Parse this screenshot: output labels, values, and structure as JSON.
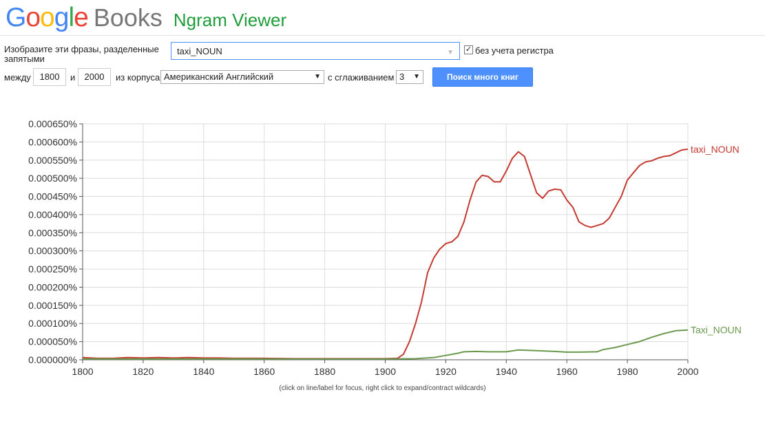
{
  "header": {
    "logo_letters": [
      "G",
      "o",
      "o",
      "g",
      "l",
      "e"
    ],
    "logo_colors": [
      "#4285f4",
      "#ea4335",
      "#fbbc05",
      "#4285f4",
      "#34a853",
      "#ea4335"
    ],
    "books": "Books",
    "title": "Ngram Viewer"
  },
  "form": {
    "phrase_label": "Изобразите эти фразы, разделенные запятыми",
    "phrase_value": "taxi_NOUN",
    "case_insensitive_label": "без учета регистра",
    "between_label": "между",
    "year_start": "1800",
    "and_label": "и",
    "year_end": "2000",
    "corpus_label": "из корпуса",
    "corpus_value": "Американский Английский",
    "smoothing_label": "с сглаживанием",
    "smoothing_value": "3",
    "search_button": "Поиск много книг"
  },
  "footnote": "(click on line/label for focus, right click to expand/contract wildcards)",
  "chart_data": {
    "type": "line",
    "xlim": [
      1800,
      2000
    ],
    "ylim": [
      0,
      0.00065
    ],
    "x_ticks": [
      1800,
      1820,
      1840,
      1860,
      1880,
      1900,
      1920,
      1940,
      1960,
      1980,
      2000
    ],
    "y_ticks": [
      "0.000000%",
      "0.000050%",
      "0.000100%",
      "0.000150%",
      "0.000200%",
      "0.000250%",
      "0.000300%",
      "0.000350%",
      "0.000400%",
      "0.000450%",
      "0.000500%",
      "0.000550%",
      "0.000600%",
      "0.000650%"
    ],
    "grid": true,
    "series": [
      {
        "name": "taxi_NOUN",
        "color": "#c43a31",
        "x": [
          1800,
          1805,
          1810,
          1815,
          1820,
          1825,
          1830,
          1835,
          1840,
          1845,
          1850,
          1860,
          1870,
          1880,
          1890,
          1900,
          1904,
          1906,
          1908,
          1910,
          1912,
          1914,
          1916,
          1918,
          1920,
          1922,
          1924,
          1926,
          1928,
          1930,
          1932,
          1934,
          1936,
          1938,
          1940,
          1942,
          1944,
          1946,
          1948,
          1950,
          1952,
          1954,
          1956,
          1958,
          1960,
          1962,
          1964,
          1966,
          1968,
          1970,
          1972,
          1974,
          1976,
          1978,
          1980,
          1982,
          1984,
          1986,
          1988,
          1990,
          1992,
          1994,
          1996,
          1998,
          2000
        ],
        "y": [
          6e-06,
          4e-06,
          4e-06,
          6e-06,
          5e-06,
          6e-06,
          5e-06,
          6e-06,
          5e-06,
          5e-06,
          4e-06,
          4e-06,
          3e-06,
          3e-06,
          3e-06,
          3e-06,
          4e-06,
          1.5e-05,
          5e-05,
          0.0001,
          0.00016,
          0.00024,
          0.00028,
          0.000305,
          0.00032,
          0.000325,
          0.00034,
          0.00038,
          0.00044,
          0.00049,
          0.000508,
          0.000505,
          0.00049,
          0.00049,
          0.00052,
          0.000555,
          0.000573,
          0.00056,
          0.00051,
          0.00046,
          0.000445,
          0.000465,
          0.00047,
          0.000468,
          0.00044,
          0.00042,
          0.00038,
          0.00037,
          0.000365,
          0.00037,
          0.000375,
          0.00039,
          0.00042,
          0.00045,
          0.000495,
          0.000515,
          0.000535,
          0.000545,
          0.000548,
          0.000555,
          0.00056,
          0.000562,
          0.00057,
          0.000578,
          0.00058
        ]
      },
      {
        "name": "Taxi_NOUN",
        "color": "#6a994e",
        "x": [
          1800,
          1820,
          1840,
          1860,
          1880,
          1900,
          1910,
          1916,
          1920,
          1924,
          1926,
          1930,
          1934,
          1940,
          1944,
          1950,
          1956,
          1960,
          1964,
          1970,
          1972,
          1976,
          1980,
          1984,
          1988,
          1992,
          1996,
          2000
        ],
        "y": [
          2e-06,
          2e-06,
          2e-06,
          2e-06,
          2e-06,
          2e-06,
          3e-06,
          6e-06,
          1.2e-05,
          1.8e-05,
          2.2e-05,
          2.3e-05,
          2.2e-05,
          2.2e-05,
          2.7e-05,
          2.5e-05,
          2.3e-05,
          2.1e-05,
          2.1e-05,
          2.2e-05,
          2.8e-05,
          3.4e-05,
          4.2e-05,
          5e-05,
          6.2e-05,
          7.2e-05,
          8e-05,
          8.2e-05
        ]
      }
    ]
  }
}
